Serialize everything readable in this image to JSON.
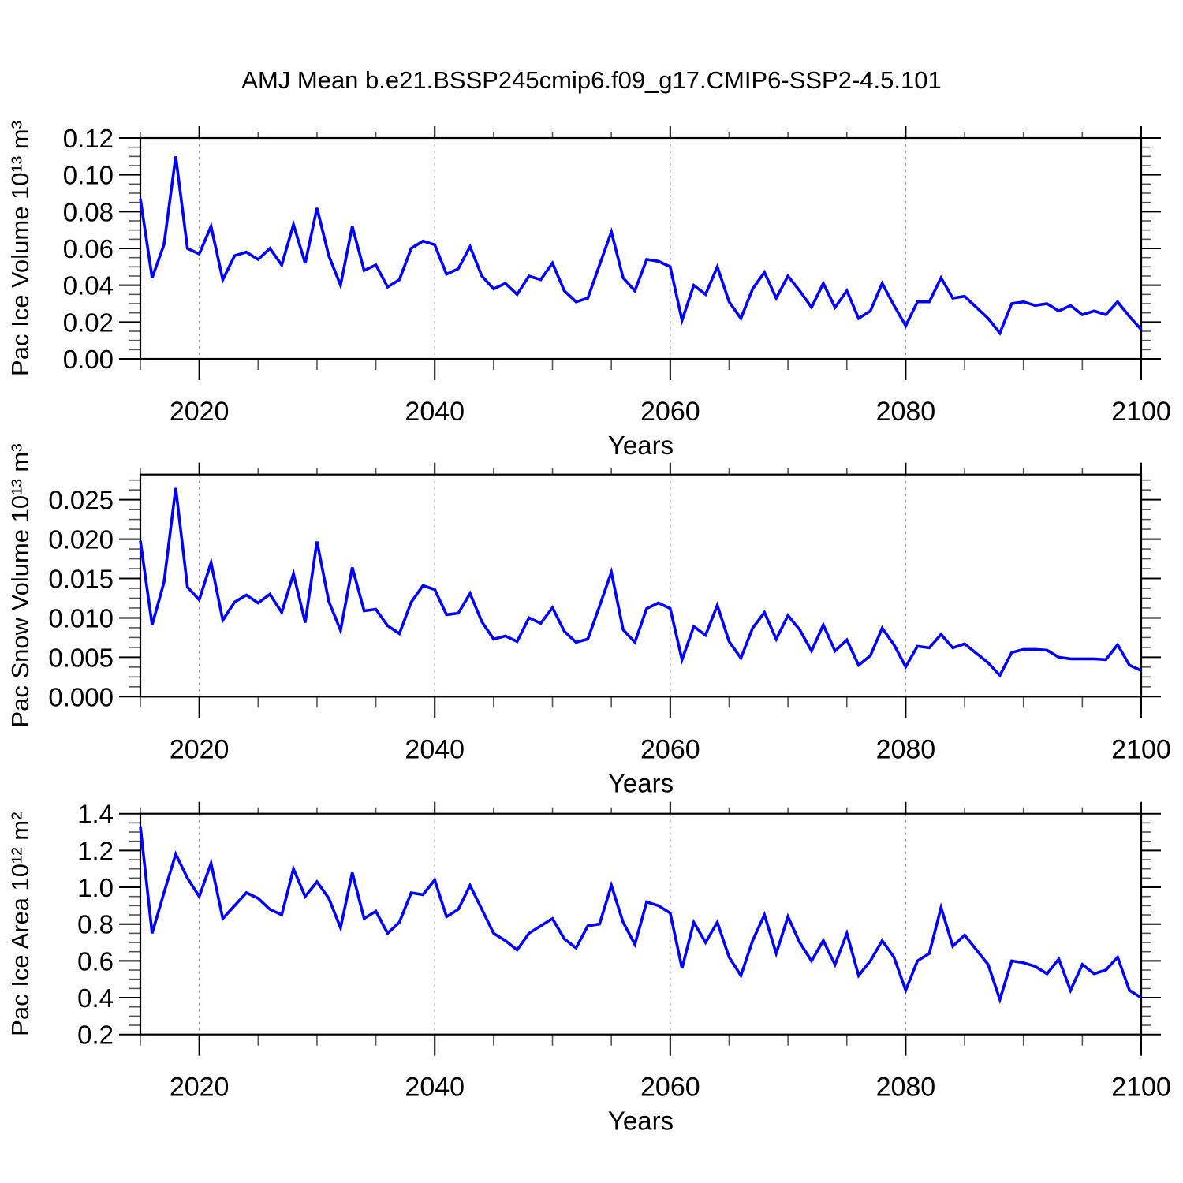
{
  "title": "AMJ Mean b.e21.BSSP245cmip6.f09_g17.CMIP6-SSP2-4.5.101",
  "line_color": "#0000ff",
  "axis_color": "#000000",
  "grid_color": "#999999",
  "chart_data": [
    {
      "type": "line",
      "name": "pac-ice-volume",
      "xlabel": "Years",
      "ylabel": "Pac Ice Volume 10¹³ m³",
      "xlim": [
        2015,
        2100
      ],
      "xticks": [
        2020,
        2040,
        2060,
        2080,
        2100
      ],
      "x_minor_step": 5,
      "grid_x": [
        2020,
        2040,
        2060,
        2080
      ],
      "ylim": [
        0,
        0.12
      ],
      "yticks": [
        0,
        0.02,
        0.04,
        0.06,
        0.08,
        0.1,
        0.12
      ],
      "ytick_decimals": 2,
      "y_minor_step": 0.005,
      "x": {
        "start": 2015,
        "end": 2100,
        "step": 1
      },
      "values": [
        0.087,
        0.044,
        0.062,
        0.11,
        0.06,
        0.057,
        0.072,
        0.043,
        0.056,
        0.058,
        0.054,
        0.06,
        0.051,
        0.073,
        0.052,
        0.082,
        0.056,
        0.04,
        0.072,
        0.048,
        0.051,
        0.039,
        0.043,
        0.06,
        0.064,
        0.062,
        0.046,
        0.049,
        0.061,
        0.045,
        0.038,
        0.041,
        0.035,
        0.045,
        0.043,
        0.052,
        0.037,
        0.031,
        0.033,
        0.051,
        0.069,
        0.044,
        0.037,
        0.054,
        0.053,
        0.05,
        0.021,
        0.04,
        0.035,
        0.05,
        0.031,
        0.022,
        0.038,
        0.047,
        0.033,
        0.045,
        0.037,
        0.028,
        0.041,
        0.028,
        0.037,
        0.022,
        0.026,
        0.041,
        0.029,
        0.018,
        0.031,
        0.031,
        0.044,
        0.033,
        0.034,
        0.028,
        0.022,
        0.014,
        0.03,
        0.031,
        0.029,
        0.03,
        0.026,
        0.029,
        0.024,
        0.026,
        0.024,
        0.031,
        0.023,
        0.016
      ]
    },
    {
      "type": "line",
      "name": "pac-snow-volume",
      "xlabel": "Years",
      "ylabel": "Pac Snow Volume 10¹³ m³",
      "xlim": [
        2015,
        2100
      ],
      "xticks": [
        2020,
        2040,
        2060,
        2080,
        2100
      ],
      "x_minor_step": 5,
      "grid_x": [
        2020,
        2040,
        2060,
        2080
      ],
      "ylim": [
        0,
        0.0282
      ],
      "yticks": [
        0,
        0.005,
        0.01,
        0.015,
        0.02,
        0.025
      ],
      "ytick_decimals": 3,
      "y_minor_step": 0.00125,
      "x": {
        "start": 2015,
        "end": 2100,
        "step": 1
      },
      "values": [
        0.0198,
        0.0091,
        0.0145,
        0.0265,
        0.0139,
        0.0123,
        0.017,
        0.0097,
        0.012,
        0.0129,
        0.0119,
        0.013,
        0.0107,
        0.0156,
        0.0094,
        0.0197,
        0.0121,
        0.0084,
        0.0164,
        0.0109,
        0.0111,
        0.009,
        0.008,
        0.012,
        0.0141,
        0.0136,
        0.0104,
        0.0106,
        0.0131,
        0.0095,
        0.0073,
        0.0077,
        0.007,
        0.01,
        0.0093,
        0.0113,
        0.0083,
        0.0069,
        0.0073,
        0.0115,
        0.0158,
        0.0085,
        0.0069,
        0.0112,
        0.0119,
        0.0112,
        0.0047,
        0.0089,
        0.0078,
        0.0116,
        0.007,
        0.0049,
        0.0087,
        0.0107,
        0.0073,
        0.0103,
        0.0085,
        0.0058,
        0.0091,
        0.0058,
        0.0072,
        0.004,
        0.0052,
        0.0087,
        0.0066,
        0.0038,
        0.0064,
        0.0062,
        0.0079,
        0.0062,
        0.0067,
        0.0055,
        0.0043,
        0.0027,
        0.0056,
        0.006,
        0.006,
        0.0059,
        0.005,
        0.0048,
        0.0048,
        0.0048,
        0.0047,
        0.0066,
        0.004,
        0.0033
      ]
    },
    {
      "type": "line",
      "name": "pac-ice-area",
      "xlabel": "Years",
      "ylabel": "Pac Ice Area 10¹² m²",
      "xlim": [
        2015,
        2100
      ],
      "xticks": [
        2020,
        2040,
        2060,
        2080,
        2100
      ],
      "x_minor_step": 5,
      "grid_x": [
        2020,
        2040,
        2060,
        2080
      ],
      "ylim": [
        0.2,
        1.4
      ],
      "yticks": [
        0.2,
        0.4,
        0.6,
        0.8,
        1.0,
        1.2,
        1.4
      ],
      "ytick_decimals": 1,
      "y_minor_step": 0.05,
      "x": {
        "start": 2015,
        "end": 2100,
        "step": 1
      },
      "values": [
        1.33,
        0.75,
        0.97,
        1.18,
        1.05,
        0.95,
        1.13,
        0.83,
        0.9,
        0.97,
        0.94,
        0.88,
        0.85,
        1.1,
        0.95,
        1.03,
        0.94,
        0.78,
        1.08,
        0.83,
        0.87,
        0.75,
        0.81,
        0.97,
        0.96,
        1.04,
        0.84,
        0.88,
        1.01,
        0.88,
        0.75,
        0.71,
        0.66,
        0.75,
        0.79,
        0.83,
        0.72,
        0.67,
        0.79,
        0.8,
        1.01,
        0.81,
        0.69,
        0.92,
        0.9,
        0.86,
        0.56,
        0.81,
        0.7,
        0.81,
        0.62,
        0.52,
        0.71,
        0.85,
        0.64,
        0.84,
        0.7,
        0.6,
        0.71,
        0.58,
        0.75,
        0.52,
        0.6,
        0.71,
        0.62,
        0.44,
        0.6,
        0.64,
        0.89,
        0.68,
        0.74,
        0.66,
        0.58,
        0.39,
        0.6,
        0.59,
        0.57,
        0.53,
        0.61,
        0.44,
        0.58,
        0.53,
        0.55,
        0.62,
        0.44,
        0.4
      ]
    }
  ]
}
